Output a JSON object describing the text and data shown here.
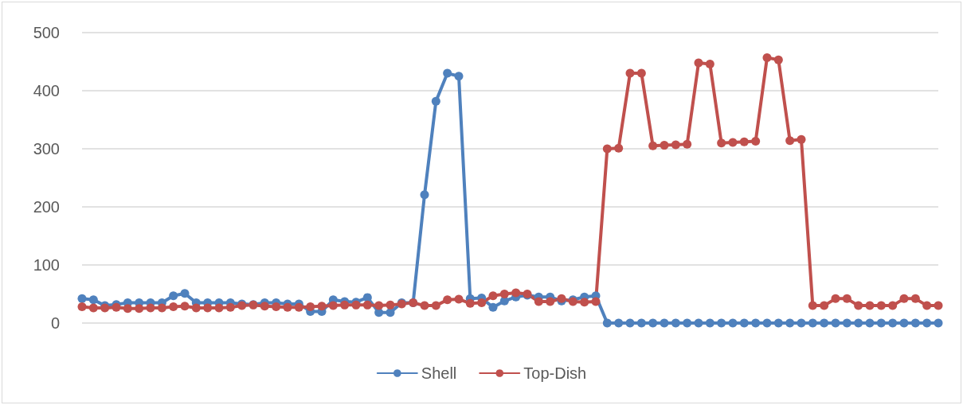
{
  "chart_data": {
    "type": "line",
    "categories": [
      null,
      null,
      null,
      null,
      null,
      null,
      null,
      null,
      null,
      null,
      null,
      null,
      null,
      null,
      null,
      null,
      null,
      null,
      null,
      null,
      null,
      null,
      null,
      null,
      null,
      null,
      null,
      null,
      null,
      null,
      null,
      null,
      null,
      null,
      null,
      null,
      null,
      null,
      null,
      null,
      null,
      null,
      null,
      null,
      null,
      null,
      null,
      null,
      null,
      null,
      null,
      null,
      null,
      null,
      null,
      null,
      null,
      null,
      null,
      null,
      null,
      null,
      null,
      null,
      null,
      null,
      null,
      null,
      null,
      null,
      null,
      null,
      null,
      null,
      null,
      null
    ],
    "series": [
      {
        "name": "Shell",
        "color": "#4f81bd",
        "values": [
          42,
          40,
          30,
          32,
          35,
          35,
          35,
          35,
          47,
          51,
          35,
          35,
          35,
          35,
          33,
          32,
          35,
          35,
          33,
          33,
          20,
          20,
          40,
          37,
          36,
          44,
          18,
          18,
          35,
          35,
          221,
          382,
          430,
          425,
          42,
          43,
          27,
          38,
          45,
          48,
          45,
          45,
          38,
          40,
          45,
          47,
          0,
          0,
          0,
          0,
          0,
          0,
          0,
          0,
          0,
          0,
          0,
          0,
          0,
          0,
          0,
          0,
          0,
          0,
          0,
          0,
          0,
          0,
          0,
          0,
          0,
          0,
          0,
          0,
          0,
          0
        ]
      },
      {
        "name": "Top-Dish",
        "color": "#c0504d",
        "values": [
          28,
          26,
          26,
          27,
          25,
          25,
          26,
          26,
          28,
          29,
          26,
          26,
          26,
          27,
          30,
          31,
          29,
          28,
          27,
          27,
          28,
          29,
          30,
          31,
          31,
          31,
          30,
          31,
          33,
          35,
          30,
          30,
          40,
          41,
          34,
          35,
          47,
          50,
          52,
          50,
          37,
          37,
          42,
          37,
          36,
          37,
          300,
          301,
          430,
          430,
          305,
          306,
          307,
          308,
          448,
          446,
          310,
          311,
          312,
          313,
          457,
          453,
          314,
          316,
          30,
          30,
          42,
          42,
          30,
          30,
          30,
          30,
          42,
          42,
          30,
          30
        ]
      }
    ],
    "ylim": [
      0,
      500
    ],
    "yticks": [
      0,
      100,
      200,
      300,
      400,
      500
    ],
    "grid": "y",
    "legend": "bottom",
    "marker": "circle",
    "line_style": "solid"
  }
}
